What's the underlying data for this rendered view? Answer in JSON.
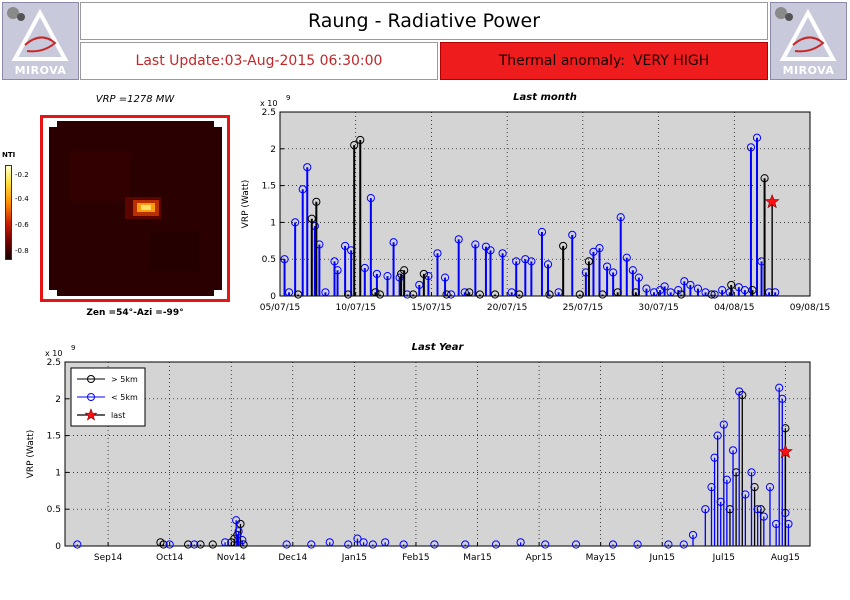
{
  "header": {
    "title": "Raung - Radiative Power",
    "last_update": "Last Update:03-Aug-2015 06:30:00",
    "anomaly_label": "Thermal anomaly:",
    "anomaly_value": "VERY HIGH",
    "logo_text": "MIROVA"
  },
  "thumbnail": {
    "title": "VRP =1278 MW",
    "caption": "Zen =54°-Azi =-99°",
    "colorbar_label": "NTI",
    "colorbar_ticks": [
      "-0.2",
      "-0.4",
      "-0.6",
      "-0.8"
    ]
  },
  "chart_data": [
    {
      "type": "stem",
      "title": "Last month",
      "xlabel": "",
      "ylabel": "VRP (Watt)",
      "y_exponent": "x 10^9",
      "x_tick_labels": [
        "05/07/15",
        "10/07/15",
        "15/07/15",
        "20/07/15",
        "25/07/15",
        "30/07/15",
        "04/08/15",
        "09/08/15"
      ],
      "x_tick_days": [
        0,
        5,
        10,
        15,
        20,
        25,
        30,
        35
      ],
      "xlim_days": [
        0,
        35
      ],
      "ylim": [
        0,
        2.5
      ],
      "y_ticks": [
        0,
        0.5,
        1,
        1.5,
        2,
        2.5
      ],
      "y_tick_labels": [
        "0",
        "0.5",
        "1",
        "1.5",
        "2",
        "2.5"
      ],
      "grid": true,
      "series": [
        {
          "name": "< 5km",
          "color": "#0000ff",
          "x": [
            0.3,
            0.6,
            1.0,
            1.5,
            1.8,
            2.3,
            2.6,
            3.0,
            3.6,
            3.8,
            4.3,
            4.7,
            5.6,
            6.0,
            6.4,
            7.1,
            7.5,
            7.9,
            8.4,
            9.2,
            9.8,
            10.4,
            10.9,
            11.3,
            11.8,
            12.2,
            12.9,
            13.6,
            13.9,
            14.7,
            15.3,
            15.6,
            16.2,
            16.6,
            17.3,
            17.7,
            18.4,
            19.3,
            20.2,
            20.7,
            21.1,
            21.6,
            22.0,
            22.5,
            22.9,
            23.3,
            23.7,
            24.2,
            24.7,
            25.1,
            25.4,
            25.8,
            26.3,
            26.7,
            27.1,
            27.6,
            28.1,
            28.7,
            29.2,
            29.7,
            30.3,
            30.7,
            31.1,
            31.5,
            31.8,
            32.3,
            32.7
          ],
          "y": [
            0.5,
            0.05,
            1.0,
            1.45,
            1.75,
            0.95,
            0.7,
            0.05,
            0.47,
            0.35,
            0.68,
            0.62,
            0.38,
            1.33,
            0.3,
            0.27,
            0.73,
            0.25,
            0.02,
            0.15,
            0.27,
            0.58,
            0.25,
            0.02,
            0.77,
            0.05,
            0.7,
            0.67,
            0.62,
            0.58,
            0.05,
            0.47,
            0.5,
            0.47,
            0.87,
            0.43,
            0.05,
            0.83,
            0.32,
            0.6,
            0.65,
            0.4,
            0.32,
            1.07,
            0.52,
            0.35,
            0.25,
            0.1,
            0.05,
            0.08,
            0.13,
            0.05,
            0.08,
            0.2,
            0.15,
            0.1,
            0.05,
            0.02,
            0.08,
            0.05,
            0.12,
            0.08,
            2.02,
            2.15,
            0.47,
            0.05,
            0.05
          ]
        },
        {
          "name": "> 5km",
          "color": "#000000",
          "x": [
            1.2,
            2.1,
            2.4,
            4.5,
            4.9,
            5.3,
            6.3,
            6.6,
            8.0,
            8.2,
            8.8,
            9.5,
            11.0,
            12.5,
            13.2,
            14.2,
            15.8,
            17.8,
            18.7,
            19.8,
            20.4,
            21.3,
            22.3,
            23.5,
            26.5,
            28.5,
            29.8,
            31.2,
            32.0
          ],
          "y": [
            0.02,
            1.05,
            1.28,
            0.02,
            2.05,
            2.12,
            0.05,
            0.02,
            0.3,
            0.35,
            0.02,
            0.3,
            0.02,
            0.05,
            0.02,
            0.02,
            0.02,
            0.02,
            0.68,
            0.02,
            0.47,
            0.02,
            0.05,
            0.05,
            0.02,
            0.02,
            0.15,
            0.08,
            1.6
          ]
        },
        {
          "name": "last",
          "color": "#ff0000",
          "x": [
            32.5
          ],
          "y": [
            1.28
          ]
        }
      ]
    },
    {
      "type": "stem",
      "title": "Last Year",
      "xlabel": "",
      "ylabel": "VRP (Watt)",
      "y_exponent": "x 10^9",
      "x_tick_labels": [
        "Sep14",
        "Oct14",
        "Nov14",
        "Dec14",
        "Jan15",
        "Feb15",
        "Mar15",
        "Apr15",
        "May15",
        "Jun15",
        "Jul15",
        "Aug15"
      ],
      "x_tick_months": [
        1,
        2,
        3,
        4,
        5,
        6,
        7,
        8,
        9,
        10,
        11,
        12
      ],
      "xlim_months": [
        0.3,
        12.4
      ],
      "ylim": [
        0,
        2.5
      ],
      "y_ticks": [
        0,
        0.5,
        1,
        1.5,
        2,
        2.5
      ],
      "y_tick_labels": [
        "0",
        "0.5",
        "1",
        "1.5",
        "2",
        "2.5"
      ],
      "grid": true,
      "legend_position": "top-left",
      "legend_entries": [
        "> 5km",
        "< 5km",
        "last"
      ],
      "series": [
        {
          "name": "> 5km",
          "color": "#000000",
          "x": [
            1.85,
            1.9,
            2.3,
            2.5,
            2.7,
            3.0,
            3.05,
            3.1,
            3.15,
            3.2,
            11.1,
            11.2,
            11.3,
            11.5,
            11.6,
            12.0
          ],
          "y": [
            0.05,
            0.02,
            0.02,
            0.02,
            0.02,
            0.05,
            0.1,
            0.15,
            0.3,
            0.02,
            0.5,
            1.0,
            2.05,
            0.8,
            0.5,
            1.6
          ]
        },
        {
          "name": "< 5km",
          "color": "#0000ff",
          "x": [
            0.5,
            2.0,
            2.4,
            2.9,
            3.08,
            3.12,
            3.18,
            3.9,
            4.3,
            4.6,
            4.9,
            5.05,
            5.15,
            5.3,
            5.5,
            5.8,
            6.3,
            6.8,
            7.3,
            7.7,
            8.1,
            8.6,
            9.2,
            9.6,
            10.1,
            10.35,
            10.5,
            10.7,
            10.8,
            10.85,
            10.9,
            10.95,
            11.0,
            11.05,
            11.15,
            11.25,
            11.35,
            11.45,
            11.55,
            11.65,
            11.75,
            11.85,
            11.9,
            11.95,
            12.0,
            12.05
          ],
          "y": [
            0.02,
            0.02,
            0.02,
            0.05,
            0.35,
            0.2,
            0.08,
            0.02,
            0.02,
            0.05,
            0.02,
            0.1,
            0.05,
            0.02,
            0.05,
            0.02,
            0.02,
            0.02,
            0.02,
            0.05,
            0.02,
            0.02,
            0.02,
            0.02,
            0.02,
            0.02,
            0.15,
            0.5,
            0.8,
            1.2,
            1.5,
            0.6,
            1.65,
            0.9,
            1.3,
            2.1,
            0.7,
            1.0,
            0.5,
            0.4,
            0.8,
            0.3,
            2.15,
            2.0,
            0.45,
            0.3
          ]
        },
        {
          "name": "last",
          "color": "#ff0000",
          "x": [
            12.0
          ],
          "y": [
            1.28
          ]
        }
      ]
    }
  ]
}
